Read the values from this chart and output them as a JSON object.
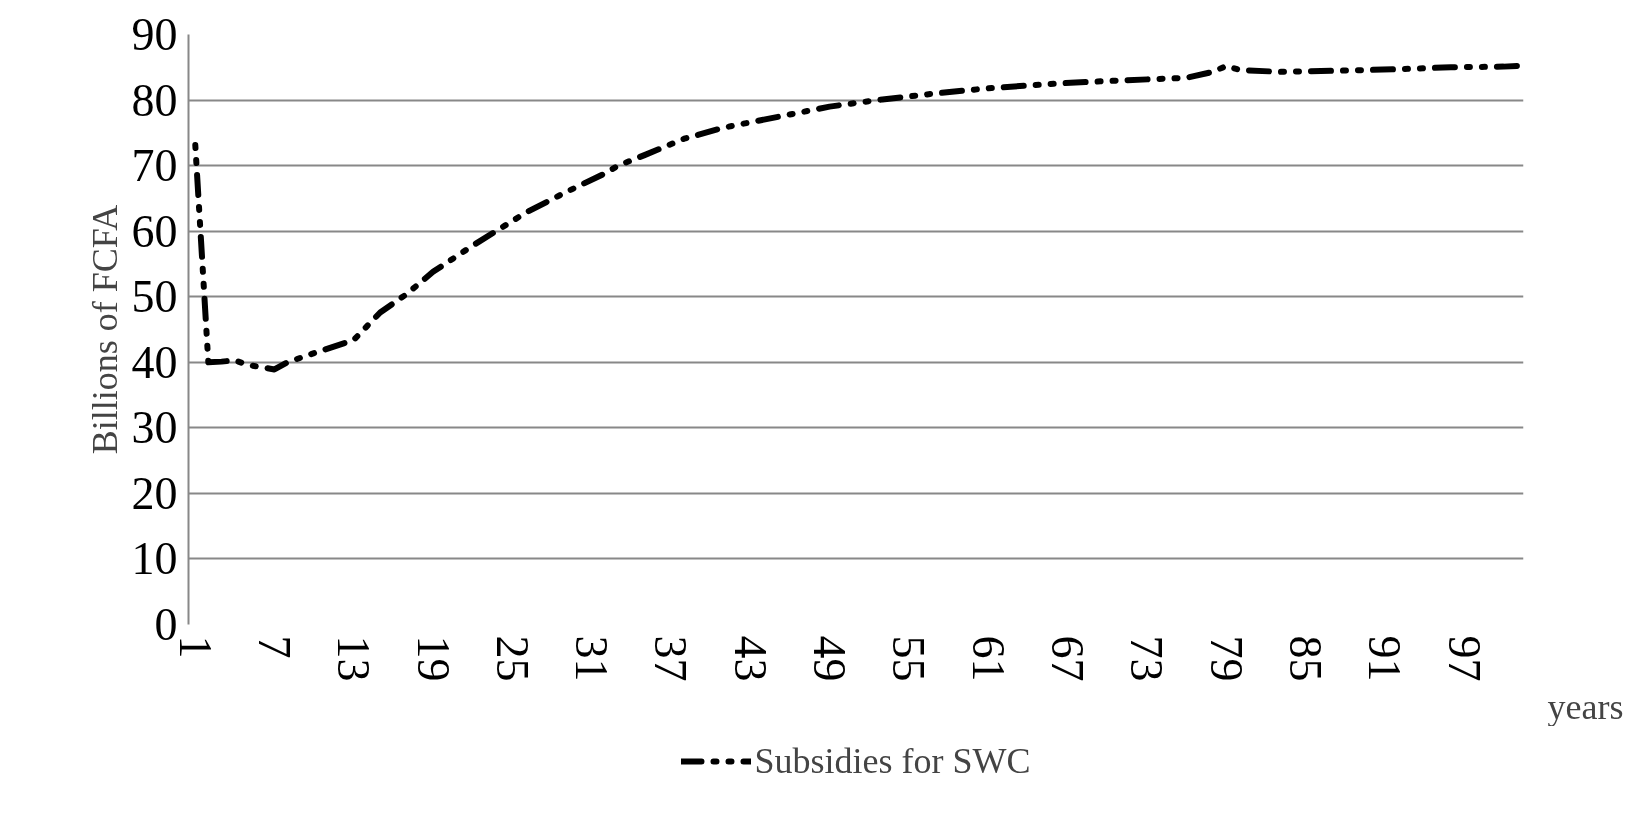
{
  "chart_data": {
    "type": "line",
    "xlabel": "years",
    "ylabel": "Billions of FCFA",
    "xlim": [
      0.5,
      101.5
    ],
    "xticks": [
      1,
      7,
      13,
      19,
      25,
      31,
      37,
      43,
      49,
      55,
      61,
      67,
      73,
      79,
      85,
      91,
      97
    ],
    "ylim": [
      0,
      90
    ],
    "yticks": [
      0,
      10,
      20,
      30,
      40,
      50,
      60,
      70,
      80,
      90
    ],
    "grid": "y",
    "legend": "bottom",
    "line_style": "dashed",
    "series": [
      {
        "name": "Subsidies for SWC",
        "color": "#000000",
        "x": [
          1,
          2,
          3,
          4,
          5,
          7,
          8,
          10,
          13,
          15,
          17,
          19,
          22,
          26,
          29,
          32,
          33,
          35,
          38,
          41,
          45,
          49,
          53,
          57,
          61,
          66,
          70,
          76,
          78,
          79,
          80,
          83,
          88,
          92,
          96,
          100,
          101
        ],
        "values": [
          73.6,
          40,
          40.1,
          40.3,
          39.6,
          38.9,
          40,
          41.4,
          43.4,
          47.6,
          50.4,
          53.8,
          57.8,
          62.8,
          65.9,
          68.8,
          70,
          71.6,
          74.1,
          75.8,
          77.4,
          79.0,
          80.1,
          81.0,
          81.8,
          82.5,
          82.9,
          83.4,
          84.3,
          85.2,
          84.6,
          84.3,
          84.5,
          84.7,
          85.0,
          85.1,
          85.2
        ]
      }
    ]
  }
}
